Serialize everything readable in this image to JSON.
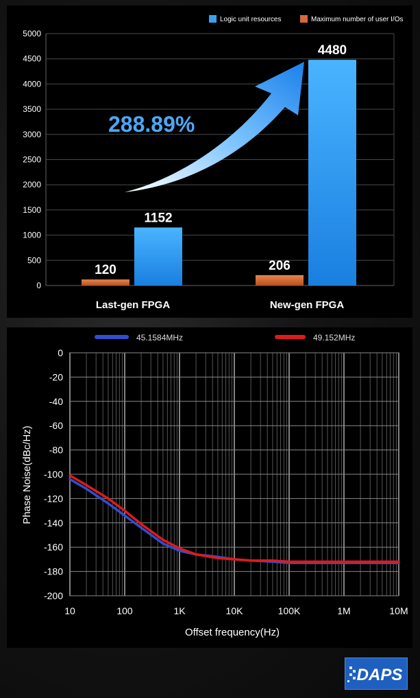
{
  "chart_data": [
    {
      "type": "bar",
      "categories": [
        "Last-gen FPGA",
        "New-gen FPGA"
      ],
      "series": [
        {
          "name": "Maximum number of user I/Os",
          "values": [
            120,
            206
          ],
          "color": "#d8683a"
        },
        {
          "name": "Logic unit resources",
          "values": [
            1152,
            4480
          ],
          "color": "#3aa0f0"
        }
      ],
      "legend": [
        "Logic unit resources",
        "Maximum number of user I/Os"
      ],
      "legend_position": "top-right",
      "ylim": [
        0,
        5000
      ],
      "yticks": [
        "0",
        "500",
        "1000",
        "1500",
        "2000",
        "2500",
        "3000",
        "3500",
        "4000",
        "4500",
        "5000"
      ],
      "value_labels": [
        "120",
        "1152",
        "206",
        "4480"
      ],
      "annotation": "288.89%",
      "grid": true
    },
    {
      "type": "line",
      "x_scale": "log",
      "xlabel": "Offset frequency(Hz)",
      "ylabel": "Phase Noise(dBc/Hz)",
      "xticks": [
        "10",
        "100",
        "1K",
        "10K",
        "100K",
        "1M",
        "10M"
      ],
      "yticks": [
        "0",
        "-20",
        "-40",
        "-60",
        "-80",
        "-100",
        "-120",
        "-140",
        "-160",
        "-180",
        "-200"
      ],
      "xlim": [
        10,
        10000000
      ],
      "ylim": [
        -200,
        0
      ],
      "legend_position": "top",
      "grid": true,
      "series": [
        {
          "name": "45.1584MHz",
          "color": "#2f4fd0",
          "x": [
            10,
            20,
            50,
            100,
            200,
            500,
            1000,
            2000,
            5000,
            10000,
            20000,
            50000,
            100000,
            200000,
            500000,
            1000000,
            10000000
          ],
          "y": [
            -104,
            -112,
            -124,
            -134,
            -144,
            -157,
            -163,
            -166,
            -168,
            -170,
            -171,
            -172,
            -173,
            -173,
            -173,
            -173,
            -173
          ]
        },
        {
          "name": "49.152MHz",
          "color": "#e01a1a",
          "x": [
            10,
            20,
            50,
            100,
            200,
            500,
            1000,
            2000,
            5000,
            10000,
            20000,
            50000,
            100000,
            200000,
            500000,
            1000000,
            10000000
          ],
          "y": [
            -101,
            -109,
            -120,
            -130,
            -141,
            -154,
            -161,
            -166,
            -169,
            -170,
            -171,
            -171,
            -172,
            -172,
            -172,
            -172,
            -172
          ]
        }
      ]
    }
  ],
  "logo": {
    "text": "DAPS",
    "color": "#1f5fbf"
  }
}
